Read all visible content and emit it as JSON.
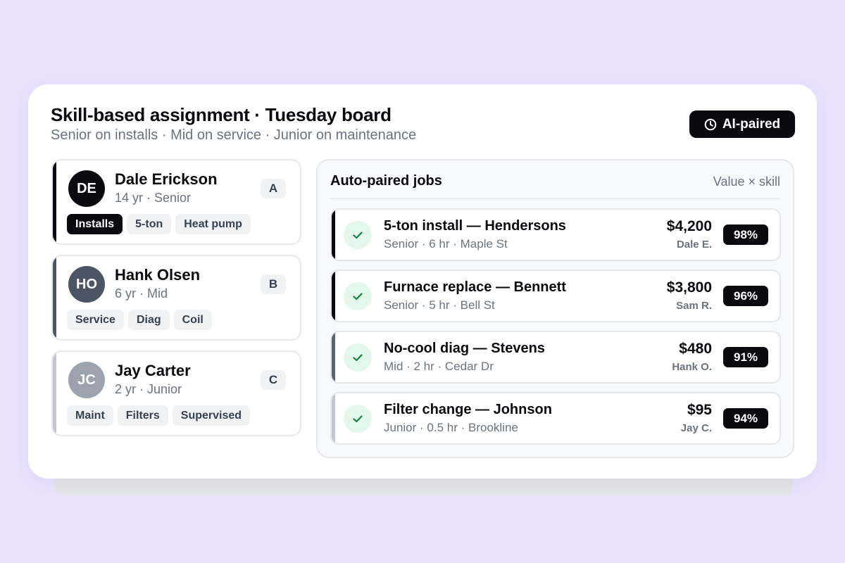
{
  "header": {
    "title": "Skill-based assignment · Tuesday board",
    "subtitle": "Senior on installs · Mid on service · Junior on maintenance",
    "badge_label": "AI-paired",
    "badge_icon": "clock-icon"
  },
  "colors": {
    "senior": "#0b0b0f",
    "mid": "#4b5563",
    "junior": "#9ca3af",
    "check_bg": "#e4f7ec",
    "check_mark": "#15803d",
    "page_bg": "#e8e2fd"
  },
  "technicians": [
    {
      "initials": "DE",
      "name": "Dale Erickson",
      "meta": "14 yr · Senior",
      "tier": "A",
      "tags": [
        "Installs",
        "5-ton",
        "Heat pump"
      ]
    },
    {
      "initials": "HO",
      "name": "Hank Olsen",
      "meta": "6 yr · Mid",
      "tier": "B",
      "tags": [
        "Service",
        "Diag",
        "Coil"
      ]
    },
    {
      "initials": "JC",
      "name": "Jay Carter",
      "meta": "2 yr · Junior",
      "tier": "C",
      "tags": [
        "Maint",
        "Filters",
        "Supervised"
      ]
    }
  ],
  "jobs_panel": {
    "title": "Auto-paired jobs",
    "hint": "Value × skill",
    "jobs": [
      {
        "title": "5-ton install — Hendersons",
        "meta": "Senior · 6 hr · Maple St",
        "value": "$4,200",
        "assignee": "Dale E.",
        "match": "98%"
      },
      {
        "title": "Furnace replace — Bennett",
        "meta": "Senior · 5 hr · Bell St",
        "value": "$3,800",
        "assignee": "Sam R.",
        "match": "96%"
      },
      {
        "title": "No-cool diag — Stevens",
        "meta": "Mid · 2 hr · Cedar Dr",
        "value": "$480",
        "assignee": "Hank O.",
        "match": "91%"
      },
      {
        "title": "Filter change — Johnson",
        "meta": "Junior · 0.5 hr · Brookline",
        "value": "$95",
        "assignee": "Jay C.",
        "match": "94%"
      }
    ]
  }
}
